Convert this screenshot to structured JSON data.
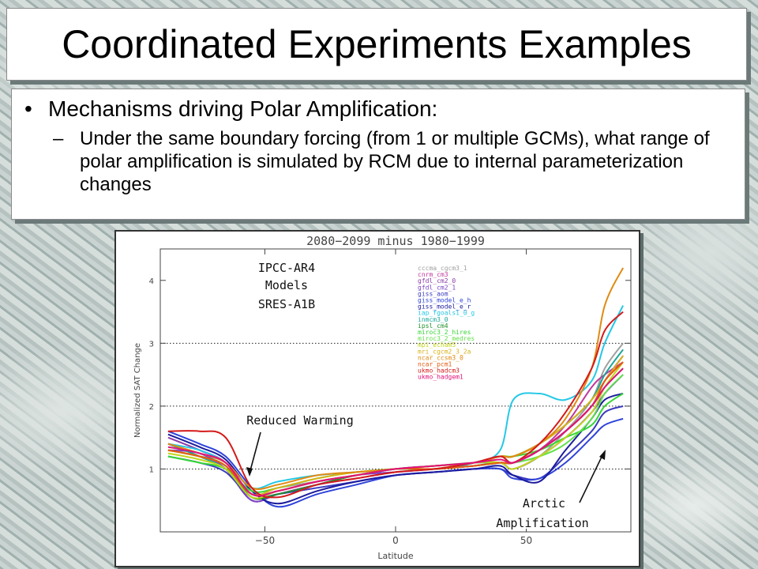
{
  "slide": {
    "title": "Coordinated Experiments Examples",
    "bullet": "Mechanisms driving Polar Amplification:",
    "sub_bullet": "Under the same boundary forcing (from 1 or multiple GCMs), what range of polar amplification is simulated by RCM due to internal parameterization changes"
  },
  "chart_data": {
    "type": "line",
    "title": "2080−2099 minus 1980−1999",
    "xlabel": "Latitude",
    "ylabel": "Normalized SAT Change",
    "xlim": [
      -90,
      90
    ],
    "ylim": [
      0,
      4.5
    ],
    "x_ticks": [
      -50,
      0,
      50
    ],
    "x_tick_labels": [
      "−50",
      "0",
      "50"
    ],
    "y_ticks": [
      1,
      2,
      3,
      4
    ],
    "y_tick_labels": [
      "1",
      "2",
      "3",
      "4"
    ],
    "reference_lines_y": [
      1,
      2,
      3
    ],
    "legend_position": "top-right, inside plot",
    "annotations": {
      "models_line1": "IPCC-AR4",
      "models_line2": "Models",
      "models_line3": "SRES-A1B",
      "reduced_warming": "Reduced Warming",
      "arctic_line1": "Arctic",
      "arctic_line2": "Amplification"
    },
    "x": [
      -87,
      -75,
      -65,
      -55,
      -45,
      -30,
      -15,
      0,
      15,
      30,
      40,
      45,
      55,
      65,
      75,
      80,
      87
    ],
    "series": [
      {
        "name": "cccma_cgcm3_1",
        "color": "#a0a0a0",
        "values": [
          1.3,
          1.2,
          1.1,
          0.6,
          0.7,
          0.8,
          0.9,
          1.0,
          1.0,
          1.1,
          1.1,
          1.0,
          1.2,
          1.6,
          2.1,
          2.6,
          3.0
        ]
      },
      {
        "name": "cnrm_cm3",
        "color": "#c03a9b",
        "values": [
          1.4,
          1.2,
          1.0,
          0.5,
          0.6,
          0.75,
          0.85,
          0.95,
          1.0,
          1.05,
          1.1,
          1.1,
          1.3,
          1.7,
          2.3,
          2.5,
          2.7
        ]
      },
      {
        "name": "gfdl_cm2_0",
        "color": "#8b3aa8",
        "values": [
          1.5,
          1.3,
          1.1,
          0.6,
          0.65,
          0.8,
          0.9,
          1.0,
          1.05,
          1.1,
          1.2,
          1.1,
          1.3,
          1.6,
          2.0,
          2.4,
          2.8
        ]
      },
      {
        "name": "gfdl_cm2_1",
        "color": "#7a42c6",
        "values": [
          1.3,
          1.25,
          1.0,
          0.5,
          0.6,
          0.75,
          0.9,
          0.95,
          1.0,
          1.05,
          1.1,
          1.0,
          1.2,
          1.5,
          1.9,
          2.2,
          2.5
        ]
      },
      {
        "name": "giss_aom",
        "color": "#3b3bbf",
        "values": [
          1.2,
          1.1,
          0.95,
          0.55,
          0.6,
          0.7,
          0.8,
          0.9,
          0.95,
          1.0,
          1.0,
          0.9,
          0.85,
          1.2,
          1.6,
          1.9,
          2.0
        ]
      },
      {
        "name": "giss_model_e_h",
        "color": "#2e43d9",
        "values": [
          1.6,
          1.4,
          1.2,
          0.7,
          0.4,
          0.6,
          0.75,
          0.9,
          0.95,
          1.0,
          1.0,
          0.85,
          0.85,
          1.1,
          1.5,
          1.7,
          1.8
        ]
      },
      {
        "name": "giss_model_e_r",
        "color": "#1c1c9e",
        "values": [
          1.55,
          1.35,
          1.15,
          0.65,
          0.45,
          0.65,
          0.8,
          0.9,
          0.95,
          1.0,
          1.05,
          0.9,
          0.8,
          1.3,
          1.8,
          2.1,
          2.2
        ]
      },
      {
        "name": "iap_fgoals1_0_g",
        "color": "#24c8e6",
        "values": [
          1.4,
          1.3,
          1.1,
          0.7,
          0.8,
          0.9,
          0.95,
          1.0,
          1.0,
          1.1,
          1.3,
          2.1,
          2.2,
          2.1,
          2.4,
          3.0,
          3.6
        ]
      },
      {
        "name": "inmcm3_0",
        "color": "#1aa69a",
        "values": [
          1.4,
          1.2,
          1.0,
          0.6,
          0.65,
          0.8,
          0.9,
          1.0,
          1.05,
          1.1,
          1.2,
          1.2,
          1.4,
          1.7,
          2.1,
          2.5,
          2.9
        ]
      },
      {
        "name": "ipsl_cm4",
        "color": "#1f8f2b",
        "values": [
          1.3,
          1.2,
          1.05,
          0.55,
          0.6,
          0.75,
          0.9,
          1.0,
          1.0,
          1.05,
          1.1,
          1.1,
          1.3,
          1.6,
          2.0,
          2.3,
          2.6
        ]
      },
      {
        "name": "miroc3_2_hires",
        "color": "#36d636",
        "values": [
          1.2,
          1.1,
          1.0,
          0.65,
          0.7,
          0.85,
          0.95,
          1.0,
          1.05,
          1.1,
          1.2,
          1.2,
          1.3,
          1.5,
          1.7,
          2.0,
          2.2
        ]
      },
      {
        "name": "miroc3_2_medres",
        "color": "#62e04a",
        "values": [
          1.3,
          1.2,
          1.05,
          0.6,
          0.65,
          0.8,
          0.9,
          1.0,
          1.05,
          1.1,
          1.1,
          1.1,
          1.2,
          1.4,
          1.8,
          2.2,
          2.5
        ]
      },
      {
        "name": "mpi_echam5",
        "color": "#c2d61c",
        "values": [
          1.25,
          1.15,
          1.0,
          0.55,
          0.65,
          0.8,
          0.9,
          1.0,
          1.0,
          1.1,
          1.1,
          1.0,
          1.2,
          1.5,
          1.9,
          2.3,
          2.7
        ]
      },
      {
        "name": "mri_cgcm2_3_2a",
        "color": "#d9b21a",
        "values": [
          1.3,
          1.2,
          1.05,
          0.6,
          0.7,
          0.85,
          0.95,
          1.0,
          1.05,
          1.1,
          1.2,
          1.2,
          1.4,
          1.7,
          2.1,
          2.4,
          2.8
        ]
      },
      {
        "name": "ncar_ccsm3_0",
        "color": "#e08a12",
        "values": [
          1.4,
          1.25,
          1.1,
          0.7,
          0.75,
          0.9,
          0.95,
          1.0,
          1.05,
          1.1,
          1.2,
          1.2,
          1.4,
          1.8,
          2.6,
          3.6,
          4.2
        ]
      },
      {
        "name": "ncar_pcm1",
        "color": "#e65a10",
        "values": [
          1.3,
          1.2,
          1.05,
          0.6,
          0.65,
          0.8,
          0.9,
          1.0,
          1.0,
          1.05,
          1.1,
          1.1,
          1.3,
          1.6,
          2.0,
          2.4,
          2.7
        ]
      },
      {
        "name": "ukmo_hadcm3",
        "color": "#d41a1a",
        "values": [
          1.6,
          1.6,
          1.5,
          0.7,
          0.55,
          0.75,
          0.85,
          0.95,
          1.0,
          1.1,
          1.2,
          1.1,
          1.4,
          1.9,
          2.6,
          3.2,
          3.5
        ]
      },
      {
        "name": "ukmo_hadgem1",
        "color": "#e0127a",
        "values": [
          1.35,
          1.25,
          1.1,
          0.6,
          0.65,
          0.8,
          0.9,
          1.0,
          1.05,
          1.1,
          1.15,
          1.1,
          1.3,
          1.6,
          2.0,
          2.3,
          2.6
        ]
      }
    ]
  }
}
